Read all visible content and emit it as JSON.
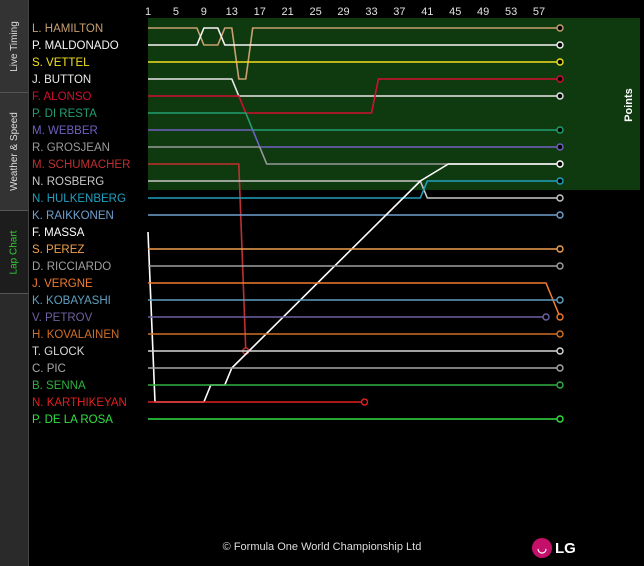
{
  "sidebar": {
    "tabs": [
      {
        "label": "Live Timing",
        "active": false
      },
      {
        "label": "Weather & Speed",
        "active": false
      },
      {
        "label": "Lap Chart",
        "active": true
      }
    ]
  },
  "footer": {
    "copyright": "© Formula One World Championship Ltd",
    "logo_text": "LG"
  },
  "chart_data": {
    "type": "line",
    "x_tick_labels": [
      "1",
      "5",
      "9",
      "13",
      "17",
      "21",
      "25",
      "29",
      "33",
      "37",
      "41",
      "45",
      "49",
      "53",
      "57"
    ],
    "xlim": [
      1,
      60
    ],
    "points_label": "Points",
    "points_positions": 10,
    "series": [
      {
        "name": "L. HAMILTON",
        "color": "#c8a070",
        "lastLap": 60,
        "pos": [
          [
            1,
            1
          ],
          [
            8,
            1
          ],
          [
            9,
            2
          ],
          [
            11,
            2
          ],
          [
            12,
            1
          ],
          [
            13,
            1
          ],
          [
            14,
            4
          ],
          [
            15,
            4
          ],
          [
            16,
            1
          ],
          [
            60,
            1
          ]
        ]
      },
      {
        "name": "P. MALDONADO",
        "color": "#f5f5f5",
        "lastLap": 60,
        "pos": [
          [
            1,
            2
          ],
          [
            8,
            2
          ],
          [
            9,
            1
          ],
          [
            11,
            1
          ],
          [
            12,
            2
          ],
          [
            60,
            2
          ]
        ]
      },
      {
        "name": "S. VETTEL",
        "color": "#f2e020",
        "lastLap": 60,
        "pos": [
          [
            1,
            3
          ],
          [
            60,
            3
          ]
        ]
      },
      {
        "name": "J. BUTTON",
        "color": "#e8e8e8",
        "lastLap": 60,
        "pos": [
          [
            1,
            4
          ],
          [
            13,
            4
          ],
          [
            14,
            5
          ],
          [
            60,
            5
          ]
        ]
      },
      {
        "name": "F. ALONSO",
        "color": "#d01030",
        "lastLap": 60,
        "pos": [
          [
            1,
            5
          ],
          [
            14,
            5
          ],
          [
            15,
            6
          ],
          [
            33,
            6
          ],
          [
            34,
            4
          ],
          [
            60,
            4
          ]
        ]
      },
      {
        "name": "P. DI RESTA",
        "color": "#20a070",
        "lastLap": 60,
        "pos": [
          [
            1,
            6
          ],
          [
            15,
            6
          ],
          [
            16,
            7
          ],
          [
            60,
            7
          ]
        ]
      },
      {
        "name": "M. WEBBER",
        "color": "#7060c0",
        "lastLap": 60,
        "pos": [
          [
            1,
            7
          ],
          [
            16,
            7
          ],
          [
            17,
            8
          ],
          [
            60,
            8
          ]
        ]
      },
      {
        "name": "R. GROSJEAN",
        "color": "#9a9a9a",
        "lastLap": 60,
        "pos": [
          [
            1,
            8
          ],
          [
            17,
            8
          ],
          [
            18,
            9
          ],
          [
            60,
            9
          ]
        ]
      },
      {
        "name": "M. SCHUMACHER",
        "color": "#c03030",
        "lastLap": 15,
        "pos": [
          [
            1,
            9
          ],
          [
            14,
            9
          ],
          [
            15,
            20
          ],
          [
            15,
            20
          ]
        ]
      },
      {
        "name": "N. ROSBERG",
        "color": "#c8c8c8",
        "lastLap": 60,
        "pos": [
          [
            1,
            10
          ],
          [
            40,
            10
          ],
          [
            41,
            11
          ],
          [
            60,
            11
          ]
        ]
      },
      {
        "name": "N. HULKENBERG",
        "color": "#20a0c0",
        "lastLap": 60,
        "pos": [
          [
            1,
            11
          ],
          [
            40,
            11
          ],
          [
            41,
            10
          ],
          [
            60,
            10
          ]
        ]
      },
      {
        "name": "K. RAIKKONEN",
        "color": "#70a0d0",
        "lastLap": 60,
        "pos": [
          [
            1,
            12
          ],
          [
            60,
            12
          ]
        ]
      },
      {
        "name": "F. MASSA",
        "color": "#ffffff",
        "lastLap": 60,
        "pos": [
          [
            1,
            13
          ],
          [
            2,
            23
          ],
          [
            9,
            23
          ],
          [
            10,
            22
          ],
          [
            12,
            22
          ],
          [
            13,
            21
          ],
          [
            40,
            10
          ],
          [
            44,
            9
          ],
          [
            60,
            9
          ]
        ]
      },
      {
        "name": "S. PEREZ",
        "color": "#f0a050",
        "lastLap": 60,
        "pos": [
          [
            1,
            14
          ],
          [
            60,
            14
          ]
        ]
      },
      {
        "name": "D. RICCIARDO",
        "color": "#a0a0a0",
        "lastLap": 60,
        "pos": [
          [
            1,
            15
          ],
          [
            60,
            15
          ]
        ]
      },
      {
        "name": "J. VERGNE",
        "color": "#f07a30",
        "lastLap": 60,
        "pos": [
          [
            1,
            16
          ],
          [
            58,
            16
          ],
          [
            60,
            18
          ]
        ]
      },
      {
        "name": "K. KOBAYASHI",
        "color": "#5fa0c0",
        "lastLap": 60,
        "pos": [
          [
            1,
            17
          ],
          [
            60,
            17
          ]
        ]
      },
      {
        "name": "V. PETROV",
        "color": "#7060a0",
        "lastLap": 58,
        "pos": [
          [
            1,
            18
          ],
          [
            58,
            18
          ]
        ]
      },
      {
        "name": "H. KOVALAINEN",
        "color": "#d07028",
        "lastLap": 60,
        "pos": [
          [
            1,
            19
          ],
          [
            60,
            19
          ]
        ]
      },
      {
        "name": "T. GLOCK",
        "color": "#d8d8d8",
        "lastLap": 60,
        "pos": [
          [
            1,
            20
          ],
          [
            60,
            20
          ]
        ]
      },
      {
        "name": "C. PIC",
        "color": "#a8a8a8",
        "lastLap": 60,
        "pos": [
          [
            1,
            21
          ],
          [
            60,
            21
          ]
        ]
      },
      {
        "name": "B. SENNA",
        "color": "#30b040",
        "lastLap": 60,
        "pos": [
          [
            1,
            22
          ],
          [
            60,
            22
          ]
        ]
      },
      {
        "name": "N. KARTHIKEYAN",
        "color": "#e02020",
        "lastLap": 32,
        "pos": [
          [
            1,
            23
          ],
          [
            32,
            23
          ]
        ]
      },
      {
        "name": "P. DE LA ROSA",
        "color": "#30e040",
        "lastLap": 60,
        "pos": [
          [
            1,
            24
          ],
          [
            60,
            24
          ]
        ]
      }
    ]
  }
}
